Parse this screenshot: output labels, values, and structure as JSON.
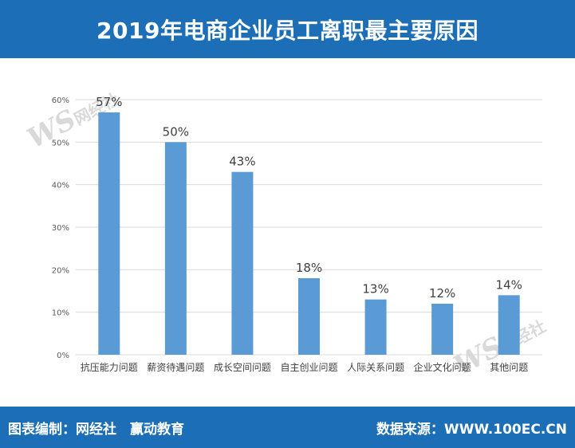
{
  "header": {
    "title": "2019年电商企业员工离职最主要原因"
  },
  "footer": {
    "left_label": "图表编制：网经社　赢动教育",
    "right_label": "数据来源：WWW.100EC.CN"
  },
  "watermark": {
    "logo": "WS网经社",
    "site": "WWW.100EC.CN"
  },
  "colors": {
    "bar": "#5b9bd5",
    "header_bg": "#1c6eb7",
    "grid": "#d9d9d9"
  },
  "chart_data": {
    "type": "bar",
    "title": "2019年电商企业员工离职最主要原因",
    "xlabel": "",
    "ylabel": "",
    "categories": [
      "抗压能力问题",
      "薪资待遇问题",
      "成长空间问题",
      "自主创业问题",
      "人际关系问题",
      "企业文化问题",
      "其他问题"
    ],
    "values": [
      57,
      50,
      43,
      18,
      13,
      12,
      14
    ],
    "data_labels": [
      "57%",
      "50%",
      "43%",
      "18%",
      "13%",
      "12%",
      "14%"
    ],
    "y_ticks": [
      "0%",
      "10%",
      "20%",
      "30%",
      "40%",
      "50%",
      "60%"
    ],
    "ylim": [
      0,
      60
    ],
    "grid": true,
    "legend": "none"
  }
}
